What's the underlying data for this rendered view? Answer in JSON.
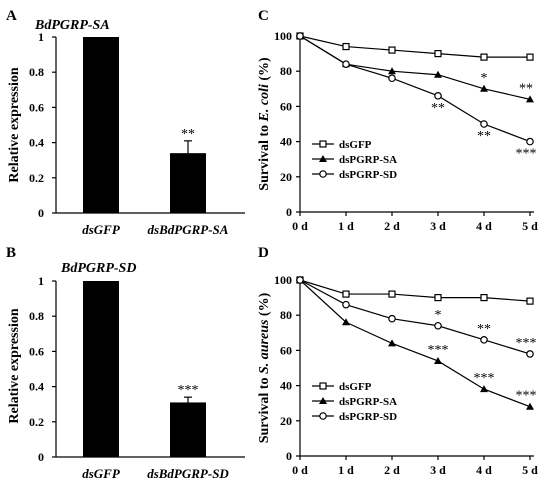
{
  "chart_data": [
    {
      "panel": "A",
      "type": "bar",
      "title": "BdPGRP-SA",
      "ylabel": "Relative expression",
      "categories": [
        "dsGFP",
        "dsBdPGRP-SA"
      ],
      "values": [
        1.0,
        0.34
      ],
      "errors": [
        0,
        0.07
      ],
      "significance": [
        "",
        "**"
      ],
      "ylim": [
        0,
        1
      ],
      "yticks": [
        "0",
        "0.2",
        "0.4",
        "0.6",
        "0.8",
        "1"
      ],
      "bar_color": "#000000"
    },
    {
      "panel": "B",
      "type": "bar",
      "title": "BdPGRP-SD",
      "ylabel": "Relative expression",
      "categories": [
        "dsGFP",
        "dsBdPGRP-SD"
      ],
      "values": [
        1.0,
        0.31
      ],
      "errors": [
        0,
        0.03
      ],
      "significance": [
        "",
        "***"
      ],
      "ylim": [
        0,
        1
      ],
      "yticks": [
        "0",
        "0.2",
        "0.4",
        "0.6",
        "0.8",
        "1"
      ],
      "bar_color": "#000000"
    },
    {
      "panel": "C",
      "type": "line",
      "ylabel_pre": "Survival to ",
      "ylabel_em": "E. coli",
      "ylabel_post": " (%)",
      "x": [
        "0 d",
        "1 d",
        "2 d",
        "3 d",
        "4 d",
        "5 d"
      ],
      "ylim": [
        0,
        100
      ],
      "yticks": [
        "0",
        "20",
        "40",
        "60",
        "80",
        "100"
      ],
      "legend": "left-middle",
      "series": [
        {
          "name": "dsGFP",
          "marker": "square",
          "values": [
            100,
            94,
            92,
            90,
            88,
            88
          ],
          "sig": [
            "",
            "",
            "",
            "",
            "",
            ""
          ]
        },
        {
          "name": "dsPGRP-SA",
          "marker": "triangle",
          "values": [
            100,
            84,
            80,
            78,
            70,
            64
          ],
          "sig": [
            "",
            "",
            "",
            "",
            "*",
            "**"
          ]
        },
        {
          "name": "dsPGRP-SD",
          "marker": "circle",
          "values": [
            100,
            84,
            76,
            66,
            50,
            40
          ],
          "sig": [
            "",
            "",
            "",
            "**",
            "**",
            "***"
          ]
        }
      ]
    },
    {
      "panel": "D",
      "type": "line",
      "ylabel_pre": "Survival to ",
      "ylabel_em": "S. aureus",
      "ylabel_post": " (%)",
      "x": [
        "0 d",
        "1 d",
        "2 d",
        "3 d",
        "4 d",
        "5 d"
      ],
      "ylim": [
        0,
        100
      ],
      "yticks": [
        "0",
        "20",
        "40",
        "60",
        "80",
        "100"
      ],
      "legend": "left-middle",
      "series": [
        {
          "name": "dsGFP",
          "marker": "square",
          "values": [
            100,
            92,
            92,
            90,
            90,
            88
          ],
          "sig": [
            "",
            "",
            "",
            "",
            "",
            ""
          ]
        },
        {
          "name": "dsPGRP-SA",
          "marker": "triangle",
          "values": [
            100,
            76,
            64,
            54,
            38,
            28
          ],
          "sig": [
            "",
            "",
            "",
            "***",
            "***",
            "***"
          ]
        },
        {
          "name": "dsPGRP-SD",
          "marker": "circle",
          "values": [
            100,
            86,
            78,
            74,
            66,
            58
          ],
          "sig": [
            "",
            "",
            "",
            "*",
            "**",
            "***"
          ]
        }
      ]
    }
  ]
}
